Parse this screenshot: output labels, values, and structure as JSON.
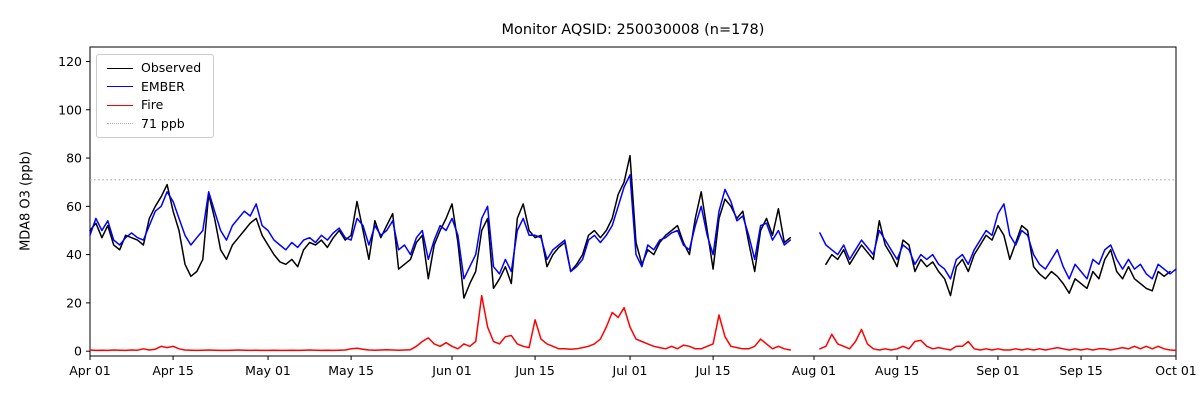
{
  "chart_data": {
    "type": "line",
    "title": "Monitor AQSID: 250030008 (n=178)",
    "xlabel": "",
    "ylabel": "MDA8 O3 (ppb)",
    "ylim": [
      -2,
      126
    ],
    "yticks": [
      0,
      20,
      40,
      60,
      80,
      100,
      120
    ],
    "x_max": 183,
    "grid": false,
    "legend_position": "upper left",
    "xticks": [
      {
        "pos": 0,
        "label": "Apr 01"
      },
      {
        "pos": 14,
        "label": "Apr 15"
      },
      {
        "pos": 30,
        "label": "May 01"
      },
      {
        "pos": 44,
        "label": "May 15"
      },
      {
        "pos": 61,
        "label": "Jun 01"
      },
      {
        "pos": 75,
        "label": "Jun 15"
      },
      {
        "pos": 91,
        "label": "Jul 01"
      },
      {
        "pos": 105,
        "label": "Jul 15"
      },
      {
        "pos": 122,
        "label": "Aug 01"
      },
      {
        "pos": 136,
        "label": "Aug 15"
      },
      {
        "pos": 153,
        "label": "Sep 01"
      },
      {
        "pos": 167,
        "label": "Sep 15"
      },
      {
        "pos": 183,
        "label": "Oct 01"
      }
    ],
    "ref_line": {
      "value": 71,
      "label": "71 ppb",
      "color": "#b0b0b0",
      "style": "dotted"
    },
    "legend_items": [
      {
        "label": "Observed",
        "color": "#000000",
        "dash": false
      },
      {
        "label": "EMBER",
        "color": "#0000ff",
        "dash": false
      },
      {
        "label": "Fire",
        "color": "#ff0000",
        "dash": false
      },
      {
        "label": "71 ppb",
        "color": "#b0b0b0",
        "dash": true
      }
    ],
    "series": [
      {
        "name": "Observed",
        "color": "#000000",
        "values": [
          50,
          53,
          47,
          52,
          44,
          42,
          48,
          47,
          46,
          44,
          55,
          60,
          64,
          69,
          58,
          50,
          36,
          31,
          33,
          38,
          65,
          55,
          42,
          38,
          44,
          47,
          50,
          53,
          55,
          48,
          44,
          40,
          37,
          36,
          38,
          35,
          42,
          45,
          44,
          46,
          43,
          47,
          50,
          46,
          48,
          62,
          50,
          38,
          54,
          47,
          52,
          57,
          34,
          36,
          38,
          45,
          48,
          30,
          44,
          50,
          55,
          61,
          45,
          22,
          28,
          33,
          50,
          55,
          26,
          30,
          35,
          28,
          55,
          61,
          50,
          47,
          48,
          35,
          40,
          43,
          45,
          33,
          36,
          40,
          48,
          50,
          47,
          50,
          55,
          65,
          70,
          81,
          45,
          36,
          42,
          40,
          45,
          48,
          50,
          52,
          45,
          40,
          55,
          66,
          50,
          34,
          55,
          63,
          60,
          55,
          58,
          45,
          33,
          50,
          55,
          48,
          59,
          45,
          47,
          null,
          null,
          null,
          null,
          null,
          36,
          40,
          38,
          42,
          36,
          40,
          44,
          41,
          38,
          54,
          44,
          40,
          35,
          46,
          44,
          33,
          38,
          35,
          37,
          33,
          30,
          23,
          35,
          38,
          33,
          40,
          44,
          48,
          46,
          52,
          48,
          38,
          45,
          52,
          50,
          35,
          32,
          30,
          33,
          31,
          28,
          24,
          30,
          28,
          26,
          33,
          30,
          38,
          42,
          33,
          30,
          35,
          30,
          28,
          26,
          25,
          33,
          31,
          33,
          null
        ]
      },
      {
        "name": "EMBER",
        "color": "#0000ff",
        "values": [
          48,
          55,
          50,
          54,
          46,
          44,
          47,
          49,
          47,
          46,
          52,
          58,
          60,
          66,
          62,
          55,
          48,
          44,
          47,
          50,
          66,
          58,
          50,
          46,
          52,
          55,
          58,
          56,
          61,
          52,
          50,
          46,
          44,
          42,
          45,
          43,
          46,
          47,
          45,
          48,
          46,
          49,
          51,
          47,
          46,
          55,
          52,
          44,
          52,
          48,
          50,
          54,
          42,
          44,
          40,
          47,
          50,
          38,
          46,
          52,
          50,
          55,
          48,
          30,
          35,
          40,
          55,
          60,
          35,
          32,
          38,
          33,
          50,
          55,
          48,
          48,
          47,
          38,
          42,
          44,
          46,
          33,
          35,
          38,
          46,
          48,
          45,
          48,
          52,
          60,
          68,
          73,
          40,
          35,
          44,
          42,
          46,
          47,
          49,
          50,
          44,
          42,
          52,
          60,
          48,
          40,
          58,
          67,
          62,
          54,
          56,
          48,
          38,
          52,
          53,
          46,
          50,
          44,
          46,
          null,
          null,
          null,
          null,
          49,
          44,
          42,
          40,
          44,
          38,
          42,
          46,
          43,
          40,
          50,
          46,
          42,
          38,
          44,
          42,
          36,
          40,
          38,
          40,
          36,
          34,
          30,
          38,
          40,
          36,
          42,
          46,
          50,
          48,
          57,
          61,
          48,
          44,
          50,
          48,
          40,
          36,
          34,
          38,
          42,
          35,
          30,
          36,
          33,
          30,
          38,
          36,
          42,
          44,
          38,
          34,
          38,
          34,
          36,
          32,
          30,
          36,
          34,
          32,
          34
        ]
      },
      {
        "name": "Fire",
        "color": "#ff0000",
        "values": [
          0.5,
          0.3,
          0.4,
          0.3,
          0.5,
          0.4,
          0.3,
          0.5,
          0.4,
          1,
          0.5,
          0.8,
          2,
          1.5,
          2,
          1,
          0.5,
          0.4,
          0.3,
          0.4,
          0.5,
          0.4,
          0.3,
          0.3,
          0.4,
          0.5,
          0.4,
          0.3,
          0.4,
          0.3,
          0.3,
          0.4,
          0.3,
          0.3,
          0.4,
          0.3,
          0.4,
          0.5,
          0.4,
          0.3,
          0.4,
          0.3,
          0.4,
          0.5,
          1,
          1.2,
          0.8,
          0.5,
          0.4,
          0.5,
          0.6,
          0.5,
          0.4,
          0.5,
          0.6,
          2,
          4,
          5.5,
          3,
          2,
          3.5,
          2,
          1,
          3,
          2,
          4,
          23,
          10,
          4,
          3,
          6,
          6.5,
          3,
          2,
          1.5,
          13,
          5,
          3,
          2,
          1,
          1,
          0.8,
          1,
          1.5,
          2,
          3,
          5,
          10,
          16,
          14,
          18,
          10,
          5,
          4,
          3,
          2,
          1.5,
          1,
          2,
          1,
          2.5,
          2,
          1,
          1,
          2,
          3,
          15,
          6,
          2,
          1.5,
          1,
          1,
          2,
          5,
          3,
          1,
          2,
          1,
          0.5,
          null,
          null,
          null,
          null,
          1,
          2,
          7,
          3,
          2,
          1,
          4,
          9,
          3,
          1,
          0.5,
          1,
          0.5,
          1,
          2,
          1,
          4,
          4.5,
          2,
          1,
          1.5,
          1,
          0.5,
          2,
          2,
          4,
          1,
          0.5,
          1,
          0.5,
          1,
          0.5,
          0.5,
          1,
          0.5,
          1,
          0.5,
          1,
          0.5,
          1,
          1.5,
          1,
          0.5,
          1,
          0.5,
          1,
          0.5,
          1,
          1,
          0.5,
          1,
          1.5,
          1,
          2,
          1,
          2,
          1,
          2,
          1,
          0.5,
          0.3
        ]
      }
    ]
  }
}
